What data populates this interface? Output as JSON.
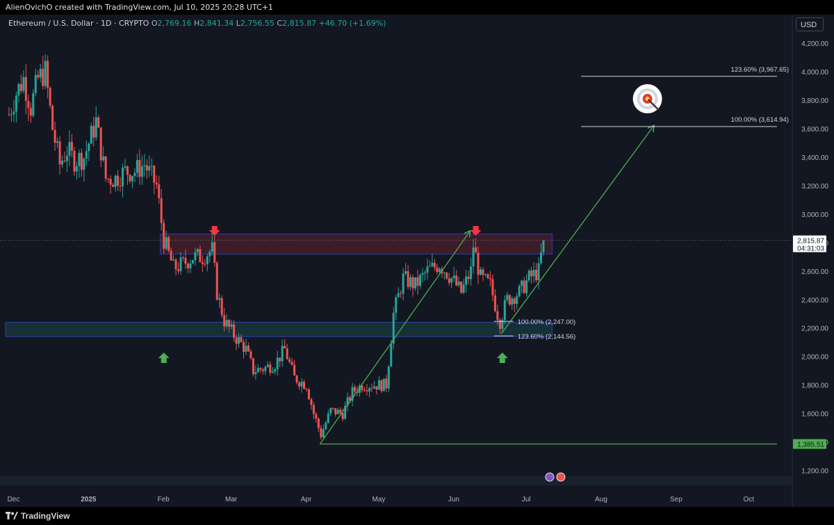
{
  "attribution": "AlienOvichO created with TradingView.com, Jul 10, 2025 20:28 UTC+1",
  "legend": {
    "symbol": "Ethereum / U.S. Dollar · 1D · CRYPTO",
    "o_label": "O",
    "o": "2,769.16",
    "h_label": "H",
    "h": "2,841.34",
    "l_label": "L",
    "l": "2,756.55",
    "c_label": "C",
    "c": "2,815.87",
    "change": "+46.70 (+1.69%)"
  },
  "currency": "USD",
  "brand": "TradingView",
  "colors": {
    "up": "#26a69a",
    "down": "#ef5350",
    "background": "#131722",
    "arrow_line": "#4caf50",
    "resistance_zone": "#f23645",
    "support_zone": "#26a69a",
    "price_label_bg": "#ffffff",
    "low_label_bg": "#4caf50"
  },
  "chart_data": {
    "type": "candlestick",
    "symbol": "ETHUSD",
    "timeframe": "1D",
    "x_labels": [
      "Dec",
      "2025",
      "Feb",
      "Mar",
      "Apr",
      "May",
      "Jun",
      "Jul",
      "Aug",
      "Sep",
      "Oct"
    ],
    "y_ticks": [
      "4,200.00",
      "4,000.00",
      "3,800.00",
      "3,600.00",
      "3,400.00",
      "3,200.00",
      "3,000.00",
      "2,800.00",
      "2,600.00",
      "2,400.00",
      "2,200.00",
      "2,000.00",
      "1,800.00",
      "1,600.00",
      "1,400.00",
      "1,200.00"
    ],
    "y_tick_values": [
      4200,
      4000,
      3800,
      3600,
      3400,
      3200,
      3000,
      2800,
      2600,
      2400,
      2200,
      2000,
      1800,
      1600,
      1400,
      1200
    ],
    "ylim": [
      1100,
      4450
    ],
    "start_date": "2024-11-30",
    "end_date": "2025-10-15",
    "path_points": [
      [
        "2024-12-01",
        3700
      ],
      [
        "2024-12-04",
        3850
      ],
      [
        "2024-12-07",
        3950
      ],
      [
        "2024-12-10",
        3750
      ],
      [
        "2024-12-13",
        3950
      ],
      [
        "2024-12-16",
        4000
      ],
      [
        "2024-12-19",
        3600
      ],
      [
        "2024-12-22",
        3350
      ],
      [
        "2024-12-25",
        3450
      ],
      [
        "2024-12-28",
        3380
      ],
      [
        "2025-01-01",
        3400
      ],
      [
        "2025-01-06",
        3650
      ],
      [
        "2025-01-10",
        3250
      ],
      [
        "2025-01-14",
        3250
      ],
      [
        "2025-01-18",
        3300
      ],
      [
        "2025-01-22",
        3300
      ],
      [
        "2025-01-26",
        3350
      ],
      [
        "2025-01-31",
        3200
      ],
      [
        "2025-02-03",
        2820
      ],
      [
        "2025-02-07",
        2620
      ],
      [
        "2025-02-11",
        2650
      ],
      [
        "2025-02-15",
        2700
      ],
      [
        "2025-02-19",
        2700
      ],
      [
        "2025-02-23",
        2750
      ],
      [
        "2025-02-25",
        2450
      ],
      [
        "2025-02-28",
        2250
      ],
      [
        "2025-03-04",
        2150
      ],
      [
        "2025-03-09",
        2050
      ],
      [
        "2025-03-12",
        1900
      ],
      [
        "2025-03-17",
        1920
      ],
      [
        "2025-03-21",
        1950
      ],
      [
        "2025-03-25",
        2050
      ],
      [
        "2025-03-29",
        1850
      ],
      [
        "2025-04-03",
        1800
      ],
      [
        "2025-04-06",
        1600
      ],
      [
        "2025-04-09",
        1450
      ],
      [
        "2025-04-13",
        1620
      ],
      [
        "2025-04-18",
        1600
      ],
      [
        "2025-04-22",
        1750
      ],
      [
        "2025-04-26",
        1800
      ],
      [
        "2025-05-01",
        1800
      ],
      [
        "2025-05-06",
        1800
      ],
      [
        "2025-05-09",
        2300
      ],
      [
        "2025-05-13",
        2550
      ],
      [
        "2025-05-18",
        2500
      ],
      [
        "2025-05-23",
        2600
      ],
      [
        "2025-05-28",
        2650
      ],
      [
        "2025-06-02",
        2550
      ],
      [
        "2025-06-06",
        2450
      ],
      [
        "2025-06-10",
        2600
      ],
      [
        "2025-06-11",
        2780
      ],
      [
        "2025-06-14",
        2550
      ],
      [
        "2025-06-18",
        2500
      ],
      [
        "2025-06-21",
        2300
      ],
      [
        "2025-06-22",
        2250
      ],
      [
        "2025-06-25",
        2400
      ],
      [
        "2025-06-30",
        2450
      ],
      [
        "2025-07-04",
        2550
      ],
      [
        "2025-07-08",
        2600
      ],
      [
        "2025-07-10",
        2815.87
      ]
    ],
    "last_price": "2,815.87",
    "countdown": "04:31:03",
    "low_level": "1,385.51",
    "zones": [
      {
        "type": "resistance",
        "from": "2025-02-02",
        "to": "2025-07-14",
        "top": 2860,
        "bottom": 2720
      },
      {
        "type": "support",
        "from": "2024-11-30",
        "to": "2025-07-14",
        "top": 2240,
        "bottom": 2140
      }
    ],
    "lines": [
      {
        "from": [
          "2025-04-09",
          1385.51
        ],
        "to": [
          "2025-06-10",
          2880
        ],
        "arrow": true
      },
      {
        "from": [
          "2025-06-23",
          2160
        ],
        "to": [
          "2025-08-25",
          3620
        ],
        "arrow": true
      },
      {
        "from": [
          "2025-04-09",
          1385.51
        ],
        "to": [
          "2025-10-15",
          1385.51
        ],
        "arrow": false
      }
    ],
    "fib_levels": [
      {
        "label": "123.60% (3,967.65)",
        "value": 3967.65,
        "from": "2025-07-26",
        "to": "2025-10-15"
      },
      {
        "label": "100.00% (3,614.94)",
        "value": 3614.94,
        "from": "2025-07-26",
        "to": "2025-10-15"
      },
      {
        "label": "100.00% (2,247.00)",
        "value": 2247.0,
        "from": "2025-06-20",
        "to": "2025-06-28"
      },
      {
        "label": "123.60% (2,144.56)",
        "value": 2144.56,
        "from": "2025-06-20",
        "to": "2025-06-28"
      }
    ],
    "markers": [
      {
        "type": "down-arrow",
        "date": "2025-02-24",
        "color": "#f23645"
      },
      {
        "type": "down-arrow",
        "date": "2025-06-12",
        "color": "#f23645"
      },
      {
        "type": "up-arrow",
        "date": "2025-02-03",
        "color": "#4caf50"
      },
      {
        "type": "up-arrow",
        "date": "2025-06-23",
        "color": "#4caf50"
      },
      {
        "type": "target",
        "date": "2025-08-22"
      }
    ]
  }
}
